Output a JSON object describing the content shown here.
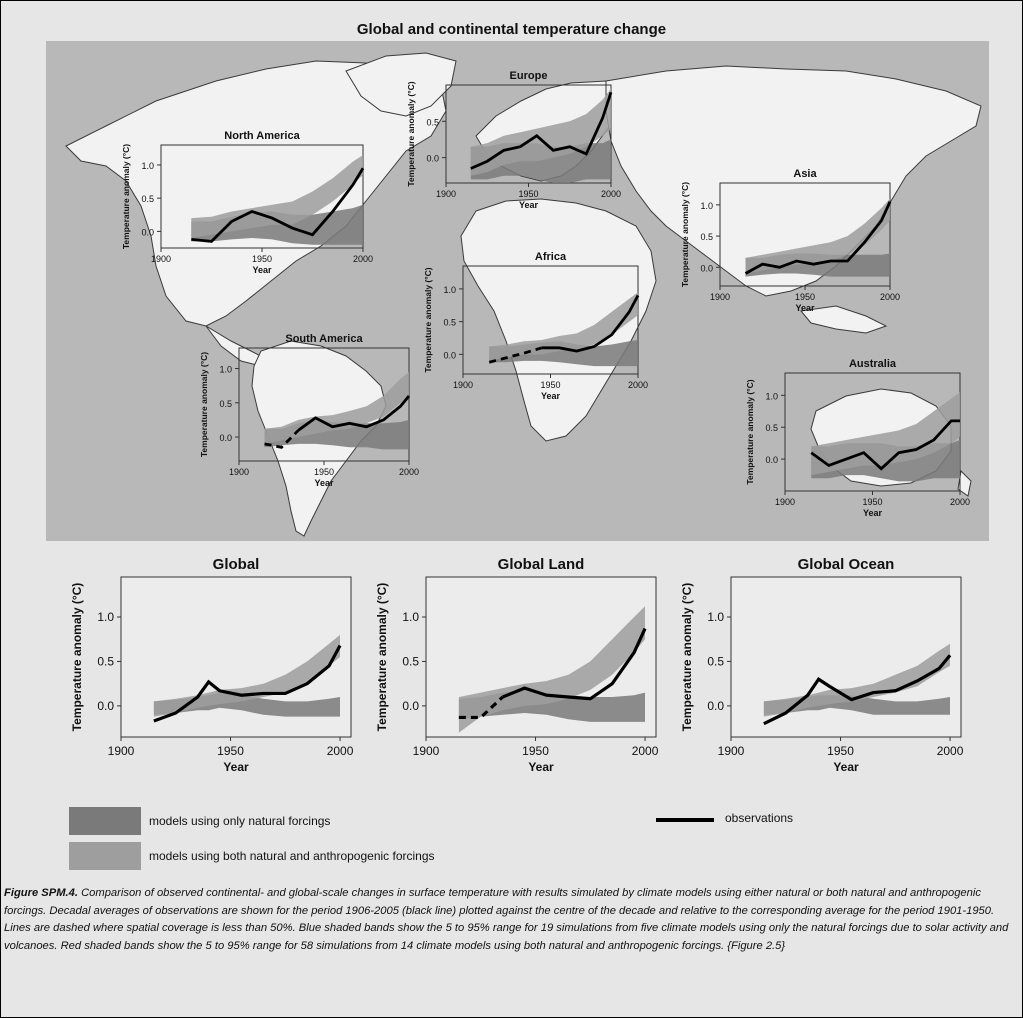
{
  "figure_title": "Global and continental temperature change",
  "colors": {
    "natural_band": "#7a7a7a",
    "anthropogenic_band": "#9e9e9e",
    "observations": "#000000",
    "map_ocean": "#b8b8b8",
    "land": "#f2f2f2"
  },
  "legend": {
    "natural": "models using only natural forcings",
    "both": "models using both natural and anthropogenic forcings",
    "observations": "observations"
  },
  "caption": {
    "label": "Figure SPM.4.",
    "text": " Comparison of observed continental- and global-scale changes in surface temperature with results simulated by climate models using either natural or both natural and anthropogenic forcings. Decadal averages of observations are shown for the period 1906-2005 (black line) plotted against the centre of the decade and relative to the corresponding average for the period 1901-1950. Lines are dashed where spatial coverage is less than 50%. Blue shaded bands show the 5 to 95% range for 19 simulations from five climate models using only the natural forcings due to solar activity and volcanoes. Red shaded bands show the 5 to 95% range for 58 simulations from 14 climate models using both natural and anthropogenic forcings. {Figure 2.5}"
  },
  "chart_data": [
    {
      "type": "line",
      "id": "north-america",
      "title": "North America",
      "xlabel": "Year",
      "ylabel": "Temperature anomaly (°C)",
      "xlim": [
        1900,
        2000
      ],
      "ylim": [
        -0.25,
        1.3
      ],
      "xticks": [
        "1900",
        "1950",
        "2000"
      ],
      "yticks": [
        "0.0",
        "0.5",
        "1.0"
      ],
      "x": [
        1915,
        1925,
        1935,
        1945,
        1955,
        1965,
        1975,
        1985,
        1995,
        2000
      ],
      "observations": [
        -0.12,
        -0.15,
        0.15,
        0.3,
        0.2,
        0.05,
        -0.05,
        0.3,
        0.7,
        0.95
      ],
      "natural": {
        "low": [
          -0.15,
          -0.15,
          -0.12,
          -0.1,
          -0.12,
          -0.18,
          -0.2,
          -0.2,
          -0.2,
          -0.2
        ],
        "high": [
          0.15,
          0.15,
          0.22,
          0.28,
          0.3,
          0.25,
          0.25,
          0.3,
          0.35,
          0.4
        ]
      },
      "anthropogenic": {
        "low": [
          -0.1,
          -0.05,
          0.0,
          0.05,
          0.1,
          0.1,
          0.25,
          0.45,
          0.7,
          0.85
        ],
        "high": [
          0.2,
          0.22,
          0.3,
          0.35,
          0.4,
          0.45,
          0.6,
          0.8,
          1.05,
          1.15
        ]
      }
    },
    {
      "type": "line",
      "id": "europe",
      "title": "Europe",
      "xlabel": "Year",
      "ylabel": "Temperature anomaly (°C)",
      "xlim": [
        1900,
        2000
      ],
      "ylim": [
        -0.35,
        1.0
      ],
      "xticks": [
        "1900",
        "1950",
        "2000"
      ],
      "yticks": [
        "0.0",
        "0.5"
      ],
      "x": [
        1915,
        1925,
        1935,
        1945,
        1955,
        1965,
        1975,
        1985,
        1995,
        2000
      ],
      "observations": [
        -0.15,
        -0.05,
        0.1,
        0.15,
        0.3,
        0.1,
        0.15,
        0.05,
        0.55,
        0.9
      ],
      "natural": {
        "low": [
          -0.3,
          -0.3,
          -0.25,
          -0.25,
          -0.3,
          -0.35,
          -0.35,
          -0.3,
          -0.3,
          -0.3
        ],
        "high": [
          0.15,
          0.15,
          0.2,
          0.2,
          0.2,
          0.15,
          0.15,
          0.2,
          0.2,
          0.25
        ]
      },
      "anthropogenic": {
        "low": [
          -0.25,
          -0.2,
          -0.1,
          -0.05,
          -0.05,
          0.0,
          0.05,
          0.15,
          0.3,
          0.4
        ],
        "high": [
          0.15,
          0.2,
          0.3,
          0.35,
          0.4,
          0.45,
          0.5,
          0.6,
          0.8,
          0.95
        ]
      }
    },
    {
      "type": "line",
      "id": "asia",
      "title": "Asia",
      "xlabel": "Year",
      "ylabel": "Temperature anomaly (°C)",
      "xlim": [
        1900,
        2000
      ],
      "ylim": [
        -0.3,
        1.35
      ],
      "xticks": [
        "1900",
        "1950",
        "2000"
      ],
      "yticks": [
        "0.0",
        "0.5",
        "1.0"
      ],
      "x": [
        1915,
        1925,
        1935,
        1945,
        1955,
        1965,
        1975,
        1985,
        1995,
        2000
      ],
      "observations": [
        -0.1,
        0.05,
        0.0,
        0.1,
        0.05,
        0.1,
        0.1,
        0.4,
        0.75,
        1.05
      ],
      "natural": {
        "low": [
          -0.15,
          -0.12,
          -0.1,
          -0.1,
          -0.12,
          -0.15,
          -0.15,
          -0.15,
          -0.15,
          -0.15
        ],
        "high": [
          0.15,
          0.15,
          0.2,
          0.22,
          0.22,
          0.2,
          0.2,
          0.2,
          0.2,
          0.22
        ]
      },
      "anthropogenic": {
        "low": [
          -0.1,
          -0.05,
          0.0,
          0.05,
          0.05,
          0.1,
          0.2,
          0.35,
          0.6,
          0.75
        ],
        "high": [
          0.15,
          0.2,
          0.25,
          0.3,
          0.35,
          0.4,
          0.5,
          0.7,
          0.95,
          1.1
        ]
      }
    },
    {
      "type": "line",
      "id": "africa",
      "title": "Africa",
      "xlabel": "Year",
      "ylabel": "Temperature anomaly (°C)",
      "xlim": [
        1900,
        2000
      ],
      "ylim": [
        -0.3,
        1.35
      ],
      "xticks": [
        "1900",
        "1950",
        "2000"
      ],
      "yticks": [
        "0.0",
        "0.5",
        "1.0"
      ],
      "x": [
        1915,
        1925,
        1935,
        1945,
        1955,
        1965,
        1975,
        1985,
        1995,
        2000
      ],
      "observations": [
        -0.12,
        -0.05,
        0.02,
        0.1,
        0.1,
        0.05,
        0.12,
        0.3,
        0.65,
        0.9
      ],
      "natural": {
        "low": [
          -0.12,
          -0.12,
          -0.1,
          -0.1,
          -0.12,
          -0.15,
          -0.18,
          -0.18,
          -0.18,
          -0.18
        ],
        "high": [
          0.12,
          0.12,
          0.15,
          0.18,
          0.2,
          0.15,
          0.12,
          0.15,
          0.2,
          0.22
        ],
        "dashed_until": 1935
      },
      "anthropogenic": {
        "low": [
          -0.1,
          -0.05,
          0.0,
          0.0,
          0.05,
          0.08,
          0.15,
          0.3,
          0.5,
          0.6
        ],
        "high": [
          0.12,
          0.15,
          0.2,
          0.22,
          0.28,
          0.32,
          0.45,
          0.65,
          0.85,
          0.95
        ]
      },
      "dashed_until": 1945
    },
    {
      "type": "line",
      "id": "south-america",
      "title": "South America",
      "xlabel": "Year",
      "ylabel": "Temperature anomaly (°C)",
      "xlim": [
        1900,
        2000
      ],
      "ylim": [
        -0.35,
        1.3
      ],
      "xticks": [
        "1900",
        "1950",
        "2000"
      ],
      "yticks": [
        "0.0",
        "0.5",
        "1.0"
      ],
      "x": [
        1915,
        1925,
        1935,
        1945,
        1955,
        1965,
        1975,
        1985,
        1995,
        2000
      ],
      "observations": [
        -0.1,
        -0.15,
        0.1,
        0.28,
        0.15,
        0.2,
        0.15,
        0.25,
        0.45,
        0.6
      ],
      "natural": {
        "low": [
          -0.15,
          -0.12,
          -0.1,
          -0.1,
          -0.12,
          -0.15,
          -0.15,
          -0.18,
          -0.18,
          -0.18
        ],
        "high": [
          0.12,
          0.12,
          0.2,
          0.25,
          0.22,
          0.2,
          0.2,
          0.2,
          0.22,
          0.25
        ]
      },
      "anthropogenic": {
        "low": [
          -0.1,
          -0.05,
          0.0,
          0.05,
          0.1,
          0.12,
          0.2,
          0.3,
          0.5,
          0.6
        ],
        "high": [
          0.12,
          0.15,
          0.25,
          0.3,
          0.32,
          0.38,
          0.45,
          0.6,
          0.85,
          0.95
        ]
      },
      "dashed_until": 1935
    },
    {
      "type": "line",
      "id": "australia",
      "title": "Australia",
      "xlabel": "Year",
      "ylabel": "Temperature anomaly (°C)",
      "xlim": [
        1900,
        2000
      ],
      "ylim": [
        -0.5,
        1.35
      ],
      "xticks": [
        "1900",
        "1950",
        "2000"
      ],
      "yticks": [
        "0.0",
        "0.5",
        "1.0"
      ],
      "x": [
        1915,
        1925,
        1935,
        1945,
        1955,
        1965,
        1975,
        1985,
        1995,
        2000
      ],
      "observations": [
        0.1,
        -0.1,
        0.0,
        0.1,
        -0.15,
        0.1,
        0.15,
        0.3,
        0.6,
        0.6
      ],
      "natural": {
        "low": [
          -0.3,
          -0.3,
          -0.25,
          -0.25,
          -0.3,
          -0.35,
          -0.35,
          -0.3,
          -0.3,
          -0.3
        ],
        "high": [
          0.2,
          0.2,
          0.25,
          0.25,
          0.25,
          0.2,
          0.2,
          0.25,
          0.25,
          0.3
        ]
      },
      "anthropogenic": {
        "low": [
          -0.25,
          -0.2,
          -0.15,
          -0.1,
          -0.1,
          -0.05,
          0.0,
          0.1,
          0.25,
          0.35
        ],
        "high": [
          0.2,
          0.25,
          0.3,
          0.35,
          0.4,
          0.45,
          0.55,
          0.75,
          0.95,
          1.05
        ]
      }
    },
    {
      "type": "line",
      "id": "global",
      "title": "Global",
      "xlabel": "Year",
      "ylabel": "Temperature anomaly (°C)",
      "xlim": [
        1900,
        2005
      ],
      "ylim": [
        -0.35,
        1.45
      ],
      "xticks": [
        "1900",
        "1950",
        "2000"
      ],
      "yticks": [
        "0.0",
        "0.5",
        "1.0"
      ],
      "x": [
        1915,
        1925,
        1935,
        1940,
        1945,
        1955,
        1965,
        1975,
        1985,
        1995,
        2000
      ],
      "observations": [
        -0.17,
        -0.08,
        0.1,
        0.27,
        0.17,
        0.12,
        0.14,
        0.14,
        0.25,
        0.45,
        0.68
      ],
      "natural": {
        "low": [
          -0.1,
          -0.08,
          -0.05,
          -0.05,
          -0.02,
          -0.05,
          -0.1,
          -0.12,
          -0.12,
          -0.12,
          -0.12
        ],
        "high": [
          0.05,
          0.07,
          0.1,
          0.12,
          0.15,
          0.12,
          0.08,
          0.05,
          0.05,
          0.08,
          0.1
        ]
      },
      "anthropogenic": {
        "low": [
          -0.12,
          -0.08,
          -0.02,
          0.0,
          0.02,
          0.05,
          0.1,
          0.15,
          0.25,
          0.45,
          0.55
        ],
        "high": [
          0.05,
          0.08,
          0.12,
          0.15,
          0.18,
          0.2,
          0.25,
          0.35,
          0.5,
          0.7,
          0.8
        ]
      }
    },
    {
      "type": "line",
      "id": "global-land",
      "title": "Global Land",
      "xlabel": "Year",
      "ylabel": "Temperature anomaly (°C)",
      "xlim": [
        1900,
        2005
      ],
      "ylim": [
        -0.35,
        1.45
      ],
      "xticks": [
        "1900",
        "1950",
        "2000"
      ],
      "yticks": [
        "0.0",
        "0.5",
        "1.0"
      ],
      "x": [
        1915,
        1925,
        1935,
        1945,
        1955,
        1965,
        1975,
        1985,
        1995,
        2000
      ],
      "observations": [
        -0.13,
        -0.13,
        0.1,
        0.2,
        0.12,
        0.1,
        0.08,
        0.25,
        0.6,
        0.87
      ],
      "natural": {
        "low": [
          -0.15,
          -0.12,
          -0.1,
          -0.08,
          -0.1,
          -0.15,
          -0.18,
          -0.18,
          -0.18,
          -0.18
        ],
        "high": [
          0.08,
          0.1,
          0.15,
          0.18,
          0.15,
          0.12,
          0.1,
          0.1,
          0.12,
          0.15
        ]
      },
      "anthropogenic": {
        "low": [
          -0.3,
          -0.12,
          -0.05,
          0.0,
          0.02,
          0.08,
          0.18,
          0.35,
          0.6,
          0.75
        ],
        "high": [
          0.1,
          0.15,
          0.2,
          0.25,
          0.28,
          0.35,
          0.5,
          0.75,
          1.0,
          1.12
        ]
      },
      "dashed_until": 1935
    },
    {
      "type": "line",
      "id": "global-ocean",
      "title": "Global Ocean",
      "xlabel": "Year",
      "ylabel": "Temperature anomaly (°C)",
      "xlim": [
        1900,
        2005
      ],
      "ylim": [
        -0.35,
        1.45
      ],
      "xticks": [
        "1900",
        "1950",
        "2000"
      ],
      "yticks": [
        "0.0",
        "0.5",
        "1.0"
      ],
      "x": [
        1915,
        1925,
        1935,
        1940,
        1945,
        1955,
        1965,
        1975,
        1985,
        1995,
        2000
      ],
      "observations": [
        -0.2,
        -0.08,
        0.12,
        0.3,
        0.22,
        0.07,
        0.15,
        0.17,
        0.28,
        0.42,
        0.57
      ],
      "natural": {
        "low": [
          -0.1,
          -0.08,
          -0.05,
          -0.05,
          -0.02,
          -0.05,
          -0.1,
          -0.1,
          -0.1,
          -0.1,
          -0.1
        ],
        "high": [
          0.05,
          0.07,
          0.1,
          0.12,
          0.12,
          0.12,
          0.08,
          0.05,
          0.05,
          0.08,
          0.1
        ]
      },
      "anthropogenic": {
        "low": [
          -0.12,
          -0.08,
          -0.02,
          0.0,
          0.02,
          0.05,
          0.1,
          0.15,
          0.22,
          0.38,
          0.45
        ],
        "high": [
          0.05,
          0.08,
          0.12,
          0.15,
          0.18,
          0.2,
          0.25,
          0.35,
          0.45,
          0.62,
          0.7
        ]
      }
    }
  ]
}
